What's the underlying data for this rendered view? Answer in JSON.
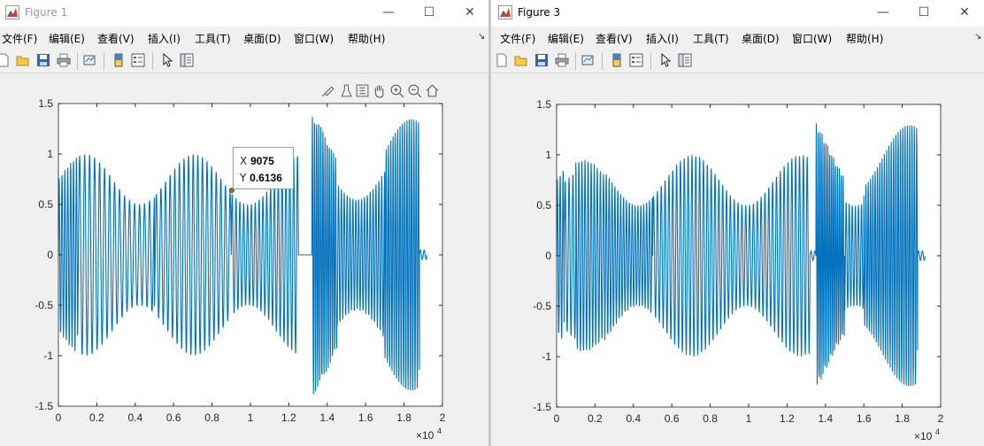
{
  "windows": [
    {
      "title": "Figure 1",
      "menu": [
        "文件(F)",
        "编辑(E)",
        "查看(V)",
        "插入(I)",
        "工具(T)",
        "桌面(D)",
        "窗口(W)",
        "帮助(H)"
      ],
      "datatip": {
        "x_label": "X",
        "x_value": "9075",
        "y_label": "Y",
        "y_value": "0.6136"
      }
    },
    {
      "title": "Figure 3",
      "menu": [
        "文件(F)",
        "编辑(E)",
        "查看(V)",
        "插入(I)",
        "工具(T)",
        "桌面(D)",
        "窗口(W)",
        "帮助(H)"
      ]
    }
  ],
  "window_buttons": {
    "minimize": "—",
    "maximize": "☐",
    "close": "✕"
  },
  "colors": {
    "line": "#0072bd",
    "figure_bg": "#f0f0f0",
    "axes_bg": "#ffffff"
  },
  "chart_data": [
    {
      "type": "line",
      "xlim": [
        0,
        20000
      ],
      "ylim": [
        -1.5,
        1.5
      ],
      "x_ticks": [
        "0",
        "0.2",
        "0.4",
        "0.6",
        "0.8",
        "1",
        "1.2",
        "1.4",
        "1.6",
        "1.8",
        "2"
      ],
      "y_ticks": [
        "1.5",
        "1",
        "0.5",
        "0",
        "-0.5",
        "-1",
        "-1.5"
      ],
      "x_exponent": "×10",
      "x_exponent_power": "4",
      "series": [
        {
          "segments": [
            {
              "x0": 0,
              "x1": 1000,
              "amp": 1.0,
              "period": 150
            },
            {
              "x0": 1000,
              "x1": 5000,
              "amp": 1.0,
              "period": 260
            },
            {
              "x0": 5000,
              "x1": 9000,
              "amp": 1.0,
              "period": 240
            },
            {
              "x0": 9000,
              "x1": 12500,
              "amp": 1.0,
              "period": 200
            },
            {
              "x0": 12500,
              "x1": 13200,
              "amp": 0.0,
              "period": 200
            },
            {
              "x0": 13200,
              "x1": 14500,
              "amp": 1.45,
              "period": 110
            },
            {
              "x0": 14500,
              "x1": 17000,
              "amp": 1.1,
              "period": 150
            },
            {
              "x0": 17000,
              "x1": 18800,
              "amp": 1.35,
              "period": 120
            },
            {
              "x0": 18800,
              "x1": 19200,
              "amp": 0.05,
              "period": 200
            }
          ]
        }
      ]
    },
    {
      "type": "line",
      "xlim": [
        0,
        20000
      ],
      "ylim": [
        -1.5,
        1.5
      ],
      "x_ticks": [
        "0",
        "0.2",
        "0.4",
        "0.6",
        "0.8",
        "1",
        "1.2",
        "1.4",
        "1.6",
        "1.8",
        "2"
      ],
      "y_ticks": [
        "1.5",
        "1",
        "0.5",
        "0",
        "-0.5",
        "-1",
        "-1.5"
      ],
      "x_exponent": "×10",
      "x_exponent_power": "4",
      "series": [
        {
          "segments": [
            {
              "x0": 0,
              "x1": 400,
              "amp": 1.0,
              "period": 150
            },
            {
              "x0": 400,
              "x1": 1000,
              "amp": 0.85,
              "period": 200
            },
            {
              "x0": 1000,
              "x1": 2500,
              "amp": 0.95,
              "period": 160
            },
            {
              "x0": 2500,
              "x1": 5000,
              "amp": 1.0,
              "period": 150
            },
            {
              "x0": 5000,
              "x1": 13200,
              "amp": 1.0,
              "period": 200
            },
            {
              "x0": 13200,
              "x1": 13500,
              "amp": 0.05,
              "period": 200
            },
            {
              "x0": 13500,
              "x1": 15000,
              "amp": 1.45,
              "period": 100
            },
            {
              "x0": 15000,
              "x1": 16000,
              "amp": 1.0,
              "period": 160
            },
            {
              "x0": 16000,
              "x1": 18800,
              "amp": 1.3,
              "period": 120
            },
            {
              "x0": 18800,
              "x1": 19200,
              "amp": 0.05,
              "period": 200
            }
          ]
        }
      ]
    }
  ]
}
